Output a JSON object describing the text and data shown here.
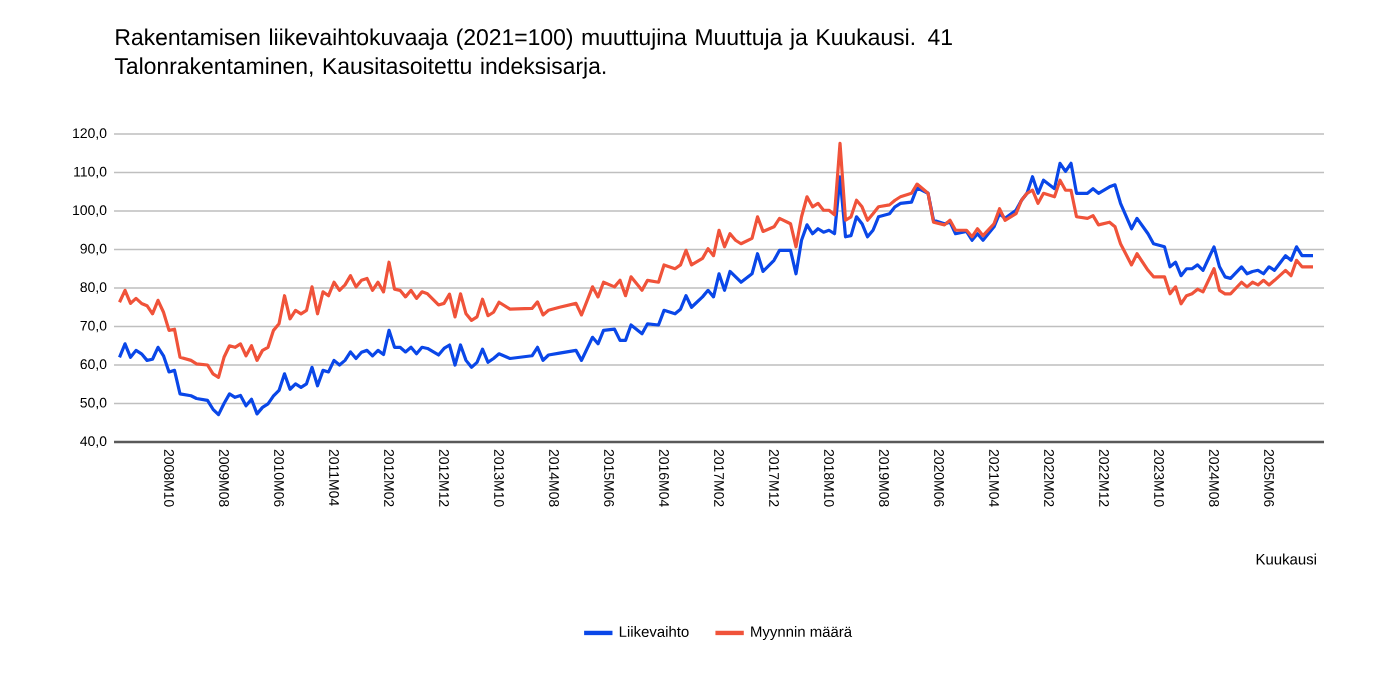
{
  "chart_data": {
    "type": "line",
    "title": "Rakentamisen liikevaihtokuvaaja (2021=100) muuttujina Muuttuja ja Kuukausi. 41 Talonrakentaminen, Kausitasoitettu indeksisarja.",
    "xlabel": "Kuukausi",
    "x": [
      "2008-01",
      "2008-02",
      "2008-03",
      "2008-04",
      "2008-05",
      "2008-06",
      "2008-07",
      "2008-08",
      "2008-09",
      "2008-10",
      "2008-11",
      "2008-12",
      "2009-02",
      "2009-03",
      "2009-05",
      "2009-06",
      "2009-07",
      "2009-08",
      "2009-09",
      "2009-10",
      "2009-11",
      "2009-12",
      "2010-01",
      "2010-02",
      "2010-03",
      "2010-04",
      "2010-05",
      "2010-06",
      "2010-07",
      "2010-08",
      "2010-09",
      "2010-10",
      "2010-11",
      "2010-12",
      "2011-01",
      "2011-02",
      "2011-03",
      "2011-04",
      "2011-05",
      "2011-06",
      "2011-07",
      "2011-08",
      "2011-09",
      "2011-10",
      "2011-11",
      "2011-12",
      "2012-01",
      "2012-02",
      "2012-03",
      "2012-04",
      "2012-05",
      "2012-06",
      "2012-07",
      "2012-08",
      "2012-09",
      "2012-11",
      "2012-12",
      "2013-01",
      "2013-02",
      "2013-03",
      "2013-04",
      "2013-05",
      "2013-06",
      "2013-07",
      "2013-08",
      "2013-09",
      "2013-10",
      "2013-12",
      "2014-04",
      "2014-05",
      "2014-06",
      "2014-07",
      "2014-09",
      "2014-12",
      "2015-01",
      "2015-03",
      "2015-04",
      "2015-05",
      "2015-07",
      "2015-08",
      "2015-09",
      "2015-10",
      "2015-12",
      "2016-01",
      "2016-03",
      "2016-04",
      "2016-06",
      "2016-07",
      "2016-08",
      "2016-09",
      "2016-11",
      "2016-12",
      "2017-01",
      "2017-02",
      "2017-03",
      "2017-04",
      "2017-05",
      "2017-06",
      "2017-08",
      "2017-09",
      "2017-10",
      "2017-12",
      "2018-01",
      "2018-03",
      "2018-04",
      "2018-05",
      "2018-06",
      "2018-07",
      "2018-08",
      "2018-09",
      "2018-10",
      "2018-11",
      "2018-12",
      "2019-01",
      "2019-02",
      "2019-03",
      "2019-04",
      "2019-05",
      "2019-06",
      "2019-07",
      "2019-09",
      "2019-10",
      "2019-11",
      "2020-01",
      "2020-02",
      "2020-04",
      "2020-05",
      "2020-07",
      "2020-08",
      "2020-09",
      "2020-11",
      "2020-12",
      "2021-01",
      "2021-02",
      "2021-04",
      "2021-05",
      "2021-06",
      "2021-08",
      "2021-09",
      "2021-10",
      "2021-11",
      "2021-12",
      "2022-01",
      "2022-03",
      "2022-04",
      "2022-05",
      "2022-06",
      "2022-07",
      "2022-09",
      "2022-10",
      "2022-11",
      "2023-01",
      "2023-02",
      "2023-03",
      "2023-05",
      "2023-06",
      "2023-08",
      "2023-09",
      "2023-11",
      "2023-12",
      "2024-01",
      "2024-02",
      "2024-03",
      "2024-04",
      "2024-05",
      "2024-06",
      "2024-08",
      "2024-09",
      "2024-10",
      "2024-11",
      "2025-01",
      "2025-02",
      "2025-03",
      "2025-04",
      "2025-05",
      "2025-06",
      "2025-07",
      "2025-09",
      "2025-10",
      "2025-11",
      "2025-12",
      "2026-02"
    ],
    "series": [
      {
        "name": "Liikevaihto",
        "color": "#0a47e8",
        "values": [
          62,
          65.5,
          62,
          63.8,
          62.9,
          61.2,
          61.5,
          64.6,
          62.4,
          58.2,
          58.6,
          52.5,
          52,
          51.3,
          50.8,
          48.5,
          47.1,
          50,
          52.5,
          51.6,
          52.1,
          49.4,
          51.1,
          47.3,
          49,
          49.9,
          52,
          53.4,
          57.7,
          53.7,
          55.1,
          54.2,
          55.1,
          59.4,
          54.6,
          58.6,
          58.2,
          61.2,
          60,
          61.2,
          63.4,
          61.7,
          63.3,
          63.8,
          62.4,
          63.8,
          62.7,
          69,
          64.6,
          64.6,
          63.4,
          64.6,
          62.9,
          64.6,
          64.3,
          62.6,
          64.3,
          65.2,
          60,
          65.2,
          61.2,
          59.4,
          60.7,
          64.1,
          60.7,
          61.7,
          62.9,
          61.7,
          62.4,
          64.6,
          61.2,
          62.6,
          63.1,
          63.8,
          61.2,
          67.2,
          65.5,
          69,
          69.3,
          66.4,
          66.4,
          70.4,
          68.1,
          70.7,
          70.4,
          74.2,
          73.3,
          74.5,
          78,
          75,
          77.7,
          79.4,
          77.7,
          83.7,
          79.4,
          84.3,
          82.9,
          81.5,
          83.7,
          88.9,
          84.3,
          87.2,
          89.8,
          89.8,
          83.7,
          92.4,
          96.4,
          94.1,
          95.4,
          94.5,
          95,
          94.1,
          108.9,
          93.3,
          93.6,
          98.5,
          96.7,
          93.3,
          95,
          98.5,
          99.3,
          101.1,
          102,
          102.3,
          106,
          104.6,
          97.6,
          96.7,
          97.1,
          94.1,
          94.7,
          92.4,
          94.1,
          92.4,
          95.9,
          99.3,
          98.1,
          100.2,
          102.8,
          104.6,
          108.9,
          104.6,
          108,
          105.8,
          112.4,
          110.3,
          112.4,
          104.6,
          104.6,
          105.8,
          104.6,
          106.3,
          106.8,
          102,
          95.4,
          98.1,
          94.1,
          91.5,
          90.7,
          85.5,
          86.7,
          83.2,
          85,
          85,
          86,
          84.6,
          90.7,
          85.5,
          82.9,
          82.5,
          85.5,
          83.7,
          84.3,
          84.6,
          83.7,
          85.5,
          84.6,
          88.4,
          87.2,
          90.7,
          88.4,
          88.4
        ]
      },
      {
        "name": "Myynnin määrä",
        "color": "#f0533a",
        "values": [
          76.3,
          79.4,
          76,
          77.3,
          76,
          75.4,
          73.3,
          76.8,
          73.7,
          69,
          69.3,
          62,
          61.2,
          60.3,
          60,
          57.7,
          56.8,
          62,
          65,
          64.6,
          65.5,
          62.4,
          65,
          61.2,
          63.8,
          64.6,
          69,
          70.7,
          78,
          72,
          74.2,
          73.3,
          74.2,
          80.3,
          73.3,
          79,
          78,
          81.5,
          79.4,
          80.8,
          83.2,
          80.3,
          82,
          82.5,
          79.4,
          81.5,
          79,
          86.7,
          79.7,
          79.4,
          77.7,
          79.4,
          77.3,
          79,
          78.5,
          75.6,
          76,
          78.4,
          72.5,
          78.5,
          73.3,
          71.6,
          72.5,
          77.1,
          72.8,
          73.7,
          76.3,
          74.5,
          74.7,
          76.4,
          73,
          74.2,
          75,
          76,
          73,
          80.3,
          77.7,
          81.5,
          80.3,
          82,
          78,
          82.9,
          79.4,
          82,
          81.5,
          86,
          85,
          86,
          89.8,
          86,
          87.7,
          90.2,
          88.4,
          95,
          90.7,
          94.1,
          92.4,
          91.5,
          92.9,
          98.5,
          94.7,
          95.9,
          98.1,
          96.7,
          90.7,
          98.5,
          103.7,
          101.1,
          102,
          100.2,
          100.2,
          99,
          117.6,
          97.6,
          98.5,
          102.8,
          101.1,
          97.6,
          99.3,
          101.1,
          101.6,
          102.8,
          103.7,
          104.6,
          107,
          104.6,
          97.1,
          96.4,
          97.6,
          95,
          95,
          93.3,
          95.4,
          93.6,
          96.7,
          100.6,
          97.6,
          99.3,
          102.8,
          104.6,
          105.4,
          102,
          104.6,
          103.7,
          108,
          105.4,
          105.4,
          98.5,
          98.1,
          98.8,
          96.4,
          97.1,
          95.9,
          91.5,
          86,
          88.9,
          84.6,
          82.9,
          82.9,
          78.5,
          80.3,
          75.9,
          78,
          78.5,
          79.7,
          79,
          85,
          79.4,
          78.5,
          78.5,
          81.5,
          80.3,
          81.5,
          80.8,
          82,
          80.8,
          82,
          84.6,
          83.2,
          87.2,
          85.5,
          85.5
        ]
      }
    ],
    "xlim": [
      "2007-12",
      "2026-04"
    ],
    "xticks": [
      {
        "value": "2008-10",
        "label": "2008M10"
      },
      {
        "value": "2009-08",
        "label": "2009M08"
      },
      {
        "value": "2010-06",
        "label": "2010M06"
      },
      {
        "value": "2011-04",
        "label": "2011M04"
      },
      {
        "value": "2012-02",
        "label": "2012M02"
      },
      {
        "value": "2012-12",
        "label": "2012M12"
      },
      {
        "value": "2013-10",
        "label": "2013M10"
      },
      {
        "value": "2014-08",
        "label": "2014M08"
      },
      {
        "value": "2015-06",
        "label": "2015M06"
      },
      {
        "value": "2016-04",
        "label": "2016M04"
      },
      {
        "value": "2017-02",
        "label": "2017M02"
      },
      {
        "value": "2017-12",
        "label": "2017M12"
      },
      {
        "value": "2018-10",
        "label": "2018M10"
      },
      {
        "value": "2019-08",
        "label": "2019M08"
      },
      {
        "value": "2020-06",
        "label": "2020M06"
      },
      {
        "value": "2021-04",
        "label": "2021M04"
      },
      {
        "value": "2022-02",
        "label": "2022M02"
      },
      {
        "value": "2022-12",
        "label": "2022M12"
      },
      {
        "value": "2023-10",
        "label": "2023M10"
      },
      {
        "value": "2024-08",
        "label": "2024M08"
      },
      {
        "value": "2025-06",
        "label": "2025M06"
      }
    ],
    "ylim": [
      40,
      120
    ],
    "yticks": [
      {
        "value": 40,
        "label": "40,0"
      },
      {
        "value": 50,
        "label": "50,0"
      },
      {
        "value": 60,
        "label": "60,0"
      },
      {
        "value": 70,
        "label": "70,0"
      },
      {
        "value": 80,
        "label": "80,0"
      },
      {
        "value": 90,
        "label": "90,0"
      },
      {
        "value": 100,
        "label": "100,0"
      },
      {
        "value": 110,
        "label": "110,0"
      },
      {
        "value": 120,
        "label": "120,0"
      }
    ],
    "grid": "y",
    "legend": "bottom",
    "line_style": "solid",
    "marker": "none"
  }
}
